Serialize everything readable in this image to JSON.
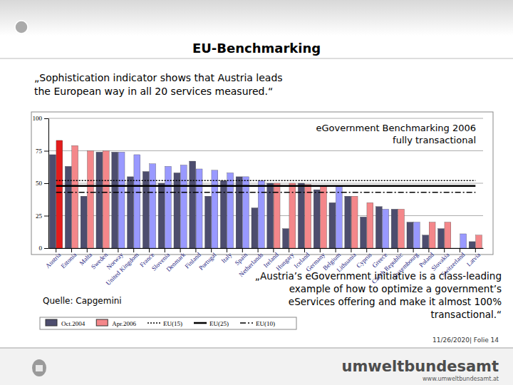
{
  "slide": {
    "header": "EU-Benchmarking",
    "quote_top": [
      "„Sophistication indicator shows that Austria leads",
      "the European way in all 20 services measured.“"
    ],
    "quote_bottom": [
      "„Austria’s eGovernment initiative is a class-leading",
      "example of how to optimize a government’s",
      "eServices offering and make it almost 100%",
      "transactional.“"
    ],
    "source": "Quelle: Capgemini",
    "footer": "11/26/2020| Folie 14",
    "logo": "umweltbundesamt",
    "url": "www.umweltbundesamt.at"
  },
  "chart_data": {
    "type": "bar",
    "title": "eGovernment Benchmarking 2006",
    "subtitle": "fully transactional",
    "categories": [
      "Austria",
      "Estonia",
      "Malta",
      "Sweden",
      "Norway",
      "United Kingdom",
      "France",
      "Slovenia",
      "Denmark",
      "Finland",
      "Portugal",
      "Italy",
      "Spain",
      "Netherlands",
      "Ireland",
      "Hungary",
      "Iceland",
      "Germany",
      "Belgium",
      "Lithuania",
      "Cyprus",
      "Greece",
      "Czech Republic",
      "Luxembourg",
      "Poland",
      "Slovakia",
      "Switzerland",
      "Latvia"
    ],
    "series": [
      {
        "name": "Oct.2004",
        "type": "bar",
        "color": "#4d4d6e",
        "values": [
          72,
          63,
          40,
          74,
          74,
          55,
          59,
          50,
          58,
          67,
          40,
          52,
          55,
          31,
          50,
          15,
          50,
          45,
          35,
          40,
          24,
          32,
          30,
          20,
          10,
          15,
          0,
          5
        ]
      },
      {
        "name": "Apr.2006",
        "type": "bar",
        "color": "#f4878a",
        "colors": [
          "#e31c1c",
          "#f4878a",
          "#f4878a",
          "#f4878a",
          "#9999ff",
          "#9999ff",
          "#9999ff",
          "#9999ff",
          "#9999ff",
          "#9999ff",
          "#9999ff",
          "#9999ff",
          "#9999ff",
          "#9999ff",
          "#f4878a",
          "#f4878a",
          "#f4878a",
          "#f4878a",
          "#9999ff",
          "#f4878a",
          "#f4878a",
          "#9999ff",
          "#f4878a",
          "#9999ff",
          "#f4878a",
          "#f4878a",
          "#9999ff",
          "#f4878a"
        ],
        "values": [
          83,
          79,
          75,
          75,
          74,
          72,
          65,
          63,
          64,
          61,
          60,
          58,
          55,
          52,
          50,
          50,
          49,
          48,
          48,
          40,
          35,
          30,
          30,
          20,
          20,
          20,
          11,
          10
        ]
      },
      {
        "name": "EU(15)",
        "type": "line",
        "color": "#000000",
        "line_style": "dotted",
        "values": [
          52,
          52,
          52,
          52,
          52,
          52,
          52,
          52,
          52,
          52,
          52,
          52,
          52,
          52,
          52,
          52,
          52,
          52,
          52,
          52,
          52,
          52,
          52,
          52,
          52,
          52,
          52,
          52
        ]
      },
      {
        "name": "EU(25)",
        "type": "line",
        "color": "#000000",
        "line_style": "solid",
        "values": [
          48,
          48,
          48,
          48,
          48,
          48,
          48,
          48,
          48,
          48,
          48,
          48,
          48,
          48,
          48,
          48,
          48,
          48,
          48,
          48,
          48,
          48,
          48,
          48,
          48,
          48,
          48,
          48
        ]
      },
      {
        "name": "EU(10)",
        "type": "line",
        "color": "#000000",
        "line_style": "dashdot",
        "values": [
          43,
          43,
          43,
          43,
          43,
          43,
          43,
          43,
          43,
          43,
          43,
          43,
          43,
          43,
          43,
          43,
          43,
          43,
          43,
          43,
          43,
          43,
          43,
          43,
          43,
          43,
          43,
          43
        ]
      }
    ],
    "ylim": [
      0,
      100
    ],
    "yticks": [
      0,
      25,
      50,
      75,
      100
    ],
    "grid": true
  }
}
